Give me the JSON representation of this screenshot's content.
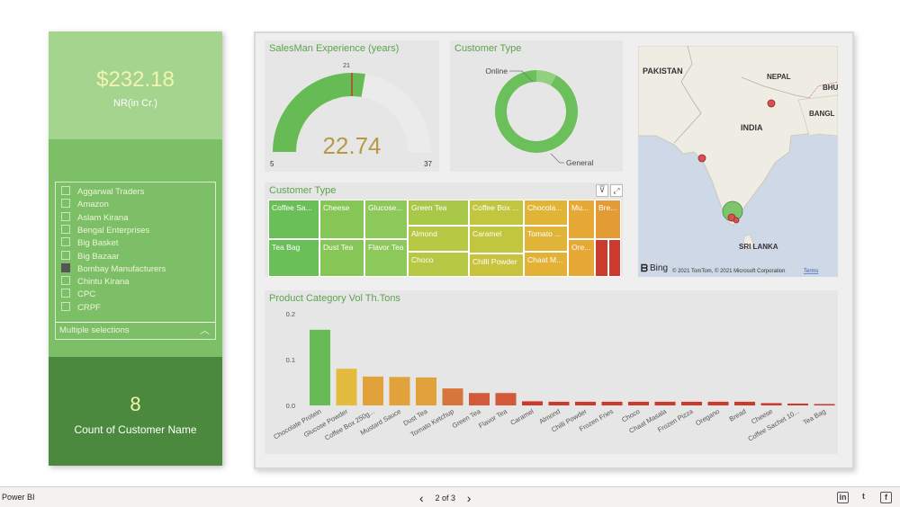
{
  "left_panel": {
    "nr_card": {
      "value": "$232.18",
      "label": "NR(in Cr.)"
    },
    "slicer": {
      "items": [
        {
          "label": "Aggarwal Traders",
          "checked": false
        },
        {
          "label": "Amazon",
          "checked": false
        },
        {
          "label": "Aslam Kirana",
          "checked": false
        },
        {
          "label": "Bengal Enterprises",
          "checked": false
        },
        {
          "label": "Big Basket",
          "checked": false
        },
        {
          "label": "Big Bazaar",
          "checked": false
        },
        {
          "label": "Bombay Manufacturers",
          "checked": true
        },
        {
          "label": "Chintu Kirana",
          "checked": false
        },
        {
          "label": "CPC",
          "checked": false
        },
        {
          "label": "CRPF",
          "checked": false
        }
      ],
      "dropdown_label": "Multiple selections"
    },
    "count_card": {
      "value": "8",
      "label": "Count of Customer Name"
    }
  },
  "gauge": {
    "title": "SalesMan Experience (years)",
    "value": "22.74",
    "min": "5",
    "max": "37",
    "target": "21",
    "value_num": 22.74,
    "min_num": 5,
    "max_num": 37,
    "target_num": 21,
    "colors": {
      "fill": "#66bb55",
      "track": "#ebebeb",
      "target": "#c0392b",
      "value_text": "#b59a45"
    }
  },
  "donut": {
    "title": "Customer Type",
    "labels": [
      "Online",
      "General"
    ],
    "shares": [
      0.08,
      0.92
    ],
    "colors": [
      "#92d080",
      "#6cc05c"
    ]
  },
  "treemap": {
    "title": "Customer Type",
    "tiles": [
      {
        "label": "Coffee Sa...",
        "color": "#6abf59"
      },
      {
        "label": "Tea Bag",
        "color": "#6abf59"
      },
      {
        "label": "Cheese",
        "color": "#86c657"
      },
      {
        "label": "Dust Tea",
        "color": "#86c657"
      },
      {
        "label": "Glucose...",
        "color": "#8dc85a"
      },
      {
        "label": "Flavor Tea",
        "color": "#8dc85a"
      },
      {
        "label": "Green Tea",
        "color": "#a9c84a"
      },
      {
        "label": "Almond",
        "color": "#b6c844"
      },
      {
        "label": "Choco",
        "color": "#b6c844"
      },
      {
        "label": "Coffee Box ...",
        "color": "#c2c63e"
      },
      {
        "label": "Caramel",
        "color": "#c2c63e"
      },
      {
        "label": "Chilli Powder",
        "color": "#c8c33c"
      },
      {
        "label": "Chocola...",
        "color": "#e0b537"
      },
      {
        "label": "Tomato ...",
        "color": "#e0b537"
      },
      {
        "label": "Chaat M...",
        "color": "#e2b136"
      },
      {
        "label": "Mu...",
        "color": "#e6a936"
      },
      {
        "label": "Ore...",
        "color": "#e6a936"
      },
      {
        "label": "Bre...",
        "color": "#e39b35"
      },
      {
        "label": "",
        "color": "#cc3a2e"
      },
      {
        "label": "",
        "color": "#cc3a2e"
      }
    ]
  },
  "map": {
    "labels": {
      "pakistan": "PAKISTAN",
      "nepal": "NEPAL",
      "bhutan": "BHU",
      "bangladesh": "BANGL",
      "india": "INDIA",
      "srilanka": "SRI LANKA"
    },
    "bing": "Bing",
    "copyright": "© 2021 TomTom, © 2021 Microsoft Corporation",
    "terms": "Terms"
  },
  "chart_data": {
    "type": "bar",
    "title": "Product Category Vol Th.Tons",
    "categories": [
      "Chocolate Protein",
      "Glucose Powder",
      "Coffee Box 250g...",
      "Mustard Sauce",
      "Dust Tea",
      "Tomato Ketchup",
      "Green Tea",
      "Flavor Tea",
      "Caramel",
      "Almond",
      "Chilli Powder",
      "Frozen Fries",
      "Choco",
      "Chaat Masala",
      "Frozen Pizza",
      "Oregano",
      "Bread",
      "Cheese",
      "Coffee Sachet 10...",
      "Tea Bag"
    ],
    "values": [
      0.165,
      0.08,
      0.063,
      0.062,
      0.061,
      0.037,
      0.027,
      0.027,
      0.009,
      0.008,
      0.008,
      0.008,
      0.008,
      0.008,
      0.008,
      0.008,
      0.008,
      0.005,
      0.004,
      0.003
    ],
    "colors": [
      "#66bb55",
      "#e3bb3f",
      "#e1a23c",
      "#e1a23c",
      "#e1a23c",
      "#d6763b",
      "#d2593a",
      "#d2593a",
      "#cc3a2e",
      "#cc3a2e",
      "#cc3a2e",
      "#cc3a2e",
      "#cc3a2e",
      "#cc3a2e",
      "#cc3a2e",
      "#cc3a2e",
      "#cc3a2e",
      "#cc3a2e",
      "#cc3a2e",
      "#cc3a2e"
    ],
    "yticks": [
      "0.0",
      "0.1",
      "0.2"
    ],
    "ylim": [
      0,
      0.2
    ],
    "grid": false
  },
  "footer": {
    "app": "Power BI",
    "page": "2 of 3",
    "prev": "‹",
    "next": "›",
    "social": [
      "in",
      "t",
      "f"
    ]
  }
}
